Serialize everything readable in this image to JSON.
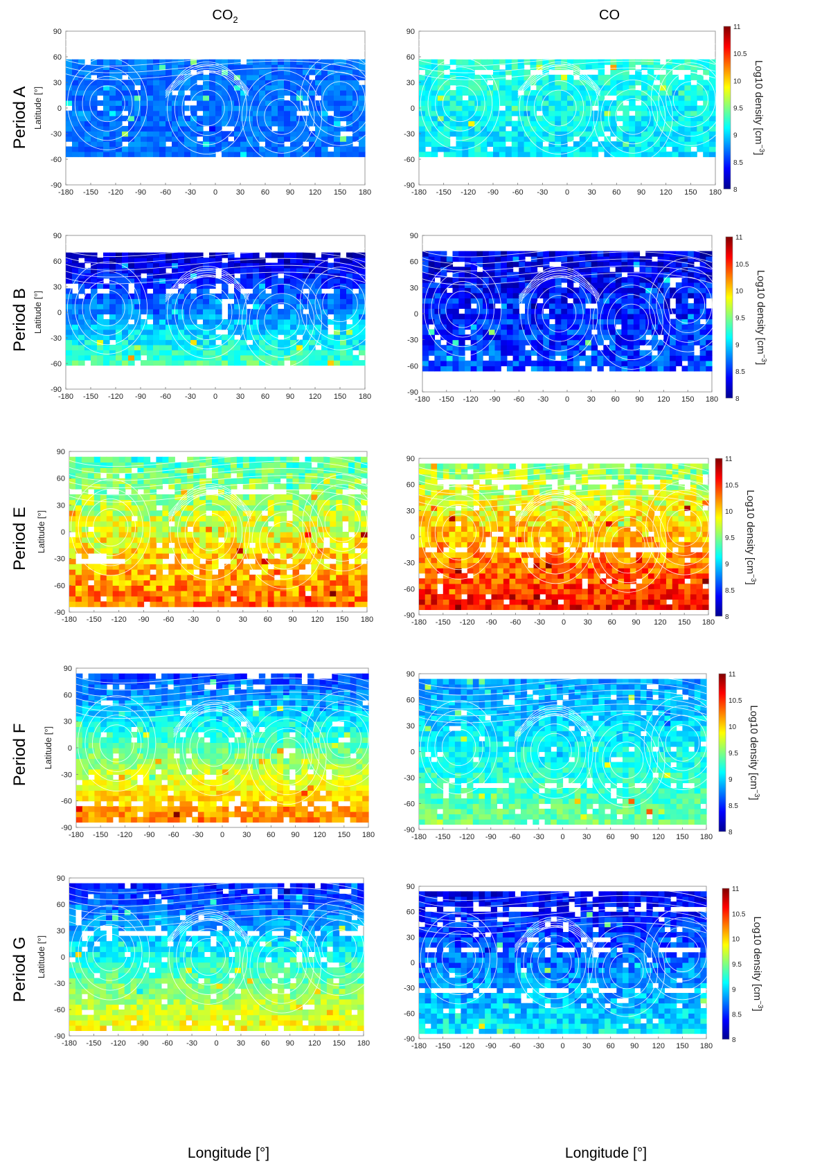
{
  "figure": {
    "column_titles": [
      {
        "main": "CO",
        "sub": "2"
      },
      {
        "main": "CO",
        "sub": ""
      }
    ],
    "row_labels": [
      "Period A",
      "Period B",
      "Period E",
      "Period F",
      "Period G"
    ],
    "ylabel": "Latitude [°]",
    "xlabel": "Longitude [°]"
  },
  "colorbar": {
    "label": "Log10 density [cm",
    "label_exponent": "−3",
    "label_close": "]",
    "ticks": [
      "11",
      "10.5",
      "10",
      "9.5",
      "9",
      "8.5",
      "8"
    ],
    "range": [
      8,
      11
    ],
    "colormap": "jet",
    "colors": [
      "#00008f",
      "#0000ff",
      "#0080ff",
      "#00ffff",
      "#80ff80",
      "#ffff00",
      "#ff8000",
      "#ff0000",
      "#800000"
    ]
  },
  "axes": {
    "xticks": [
      "-180",
      "-150",
      "-120",
      "-90",
      "-60",
      "-30",
      "0",
      "30",
      "60",
      "90",
      "120",
      "150",
      "180"
    ],
    "yticks": [
      "90",
      "60",
      "30",
      "0",
      "-30",
      "-60",
      "-90"
    ],
    "xlim": [
      -180,
      180
    ],
    "ylim": [
      -90,
      90
    ]
  },
  "chart_data": [
    {
      "type": "heatmap",
      "period": "Period A",
      "species": "CO2",
      "x_range": [
        -180,
        180
      ],
      "y_range": [
        -90,
        90
      ],
      "colorbar": false,
      "lat_coverage": [
        -57,
        57
      ],
      "south_log10_density": 8.7,
      "north_log10_density": 8.7,
      "noise": 0.15,
      "contours": true
    },
    {
      "type": "heatmap",
      "period": "Period A",
      "species": "CO",
      "x_range": [
        -180,
        180
      ],
      "y_range": [
        -90,
        90
      ],
      "colorbar": true,
      "lat_coverage": [
        -57,
        57
      ],
      "south_log10_density": 9.05,
      "north_log10_density": 9.25,
      "noise": 0.2,
      "contours": true
    },
    {
      "type": "heatmap",
      "period": "Period B",
      "species": "CO2",
      "x_range": [
        -180,
        180
      ],
      "y_range": [
        -90,
        90
      ],
      "colorbar": false,
      "lat_coverage": [
        -62,
        67
      ],
      "south_log10_density": 9.35,
      "north_log10_density": 8.15,
      "noise": 0.22,
      "contours": true
    },
    {
      "type": "heatmap",
      "period": "Period B",
      "species": "CO",
      "x_range": [
        -180,
        180
      ],
      "y_range": [
        -90,
        90
      ],
      "colorbar": true,
      "lat_coverage": [
        -66,
        67
      ],
      "south_log10_density": 8.6,
      "north_log10_density": 8.3,
      "noise": 0.3,
      "contours": true
    },
    {
      "type": "heatmap",
      "period": "Period E",
      "species": "CO2",
      "x_range": [
        -180,
        180
      ],
      "y_range": [
        -90,
        90
      ],
      "colorbar": false,
      "lat_coverage": [
        -84,
        84
      ],
      "south_log10_density": 10.3,
      "north_log10_density": 9.3,
      "noise": 0.3,
      "contours": true
    },
    {
      "type": "heatmap",
      "period": "Period E",
      "species": "CO",
      "x_range": [
        -180,
        180
      ],
      "y_range": [
        -90,
        90
      ],
      "colorbar": true,
      "lat_coverage": [
        -84,
        84
      ],
      "south_log10_density": 10.6,
      "north_log10_density": 9.5,
      "noise": 0.3,
      "contours": true
    },
    {
      "type": "heatmap",
      "period": "Period F",
      "species": "CO2",
      "x_range": [
        -180,
        180
      ],
      "y_range": [
        -90,
        90
      ],
      "colorbar": false,
      "lat_coverage": [
        -84,
        84
      ],
      "south_log10_density": 10.25,
      "north_log10_density": 8.5,
      "noise": 0.2,
      "contours": true
    },
    {
      "type": "heatmap",
      "period": "Period F",
      "species": "CO",
      "x_range": [
        -180,
        180
      ],
      "y_range": [
        -90,
        90
      ],
      "colorbar": true,
      "lat_coverage": [
        -84,
        84
      ],
      "south_log10_density": 9.45,
      "north_log10_density": 8.8,
      "noise": 0.2,
      "contours": true
    },
    {
      "type": "heatmap",
      "period": "Period G",
      "species": "CO2",
      "x_range": [
        -180,
        180
      ],
      "y_range": [
        -90,
        90
      ],
      "colorbar": false,
      "lat_coverage": [
        -84,
        84
      ],
      "south_log10_density": 9.9,
      "north_log10_density": 8.4,
      "noise": 0.2,
      "contours": true
    },
    {
      "type": "heatmap",
      "period": "Period G",
      "species": "CO",
      "x_range": [
        -180,
        180
      ],
      "y_range": [
        -90,
        90
      ],
      "colorbar": true,
      "lat_coverage": [
        -84,
        84
      ],
      "south_log10_density": 9.1,
      "north_log10_density": 8.3,
      "noise": 0.25,
      "contours": true
    }
  ]
}
